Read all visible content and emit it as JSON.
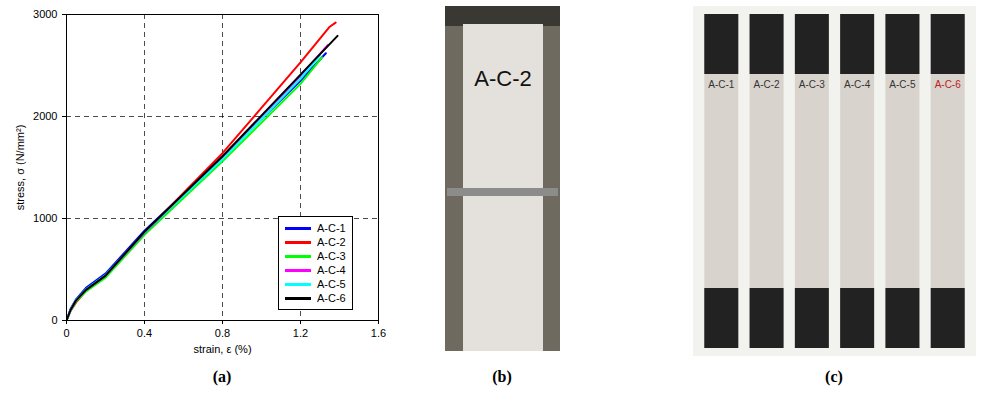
{
  "chart_data": {
    "type": "line",
    "x_label": "strain, ε (%)",
    "y_label": "stress, σ (N/mm²)",
    "xlim": [
      0,
      1.6
    ],
    "xticks": [
      0,
      0.4,
      0.8,
      1.2,
      1.6
    ],
    "ylim": [
      0,
      3000
    ],
    "yticks": [
      0,
      1000,
      2000,
      3000
    ],
    "grid": true,
    "legend": "bottom-right",
    "series": [
      {
        "name": "A-C-1",
        "color": "#0000ff",
        "x": [
          0,
          0.02,
          0.05,
          0.1,
          0.2,
          0.4,
          0.8,
          1.2,
          1.33
        ],
        "values": [
          0,
          110,
          210,
          320,
          460,
          880,
          1600,
          2350,
          2620
        ]
      },
      {
        "name": "A-C-2",
        "color": "#ff0000",
        "x": [
          0,
          0.02,
          0.05,
          0.1,
          0.2,
          0.4,
          0.8,
          1.2,
          1.35,
          1.38
        ],
        "values": [
          0,
          90,
          180,
          290,
          430,
          860,
          1640,
          2530,
          2880,
          2920
        ]
      },
      {
        "name": "A-C-3",
        "color": "#00ff00",
        "x": [
          0,
          0.02,
          0.05,
          0.1,
          0.2,
          0.4,
          0.8,
          1.2,
          1.31
        ],
        "values": [
          0,
          95,
          190,
          285,
          420,
          840,
          1560,
          2320,
          2580
        ]
      },
      {
        "name": "A-C-4",
        "color": "#ff00ff",
        "x": [
          0,
          0.02,
          0.05,
          0.1,
          0.2,
          0.4,
          0.8,
          1.2,
          1.34
        ],
        "values": [
          0,
          100,
          200,
          300,
          440,
          860,
          1590,
          2400,
          2700
        ]
      },
      {
        "name": "A-C-5",
        "color": "#00ffff",
        "x": [
          0,
          0.02,
          0.05,
          0.1,
          0.2,
          0.4,
          0.8,
          1.2,
          1.3
        ],
        "values": [
          0,
          100,
          205,
          305,
          445,
          865,
          1580,
          2370,
          2600
        ]
      },
      {
        "name": "A-C-6",
        "color": "#000000",
        "x": [
          0,
          0.02,
          0.05,
          0.1,
          0.2,
          0.4,
          0.8,
          1.2,
          1.39
        ],
        "values": [
          0,
          100,
          200,
          300,
          440,
          870,
          1610,
          2410,
          2790
        ]
      }
    ]
  },
  "panel_labels": [
    "(a)",
    "(b)",
    "(c)"
  ],
  "photo_b": {
    "label": "A-C-2"
  },
  "photo_c": {
    "labels": [
      "A-C-1",
      "A-C-2",
      "A-C-3",
      "A-C-4",
      "A-C-5",
      "A-C-6"
    ]
  }
}
